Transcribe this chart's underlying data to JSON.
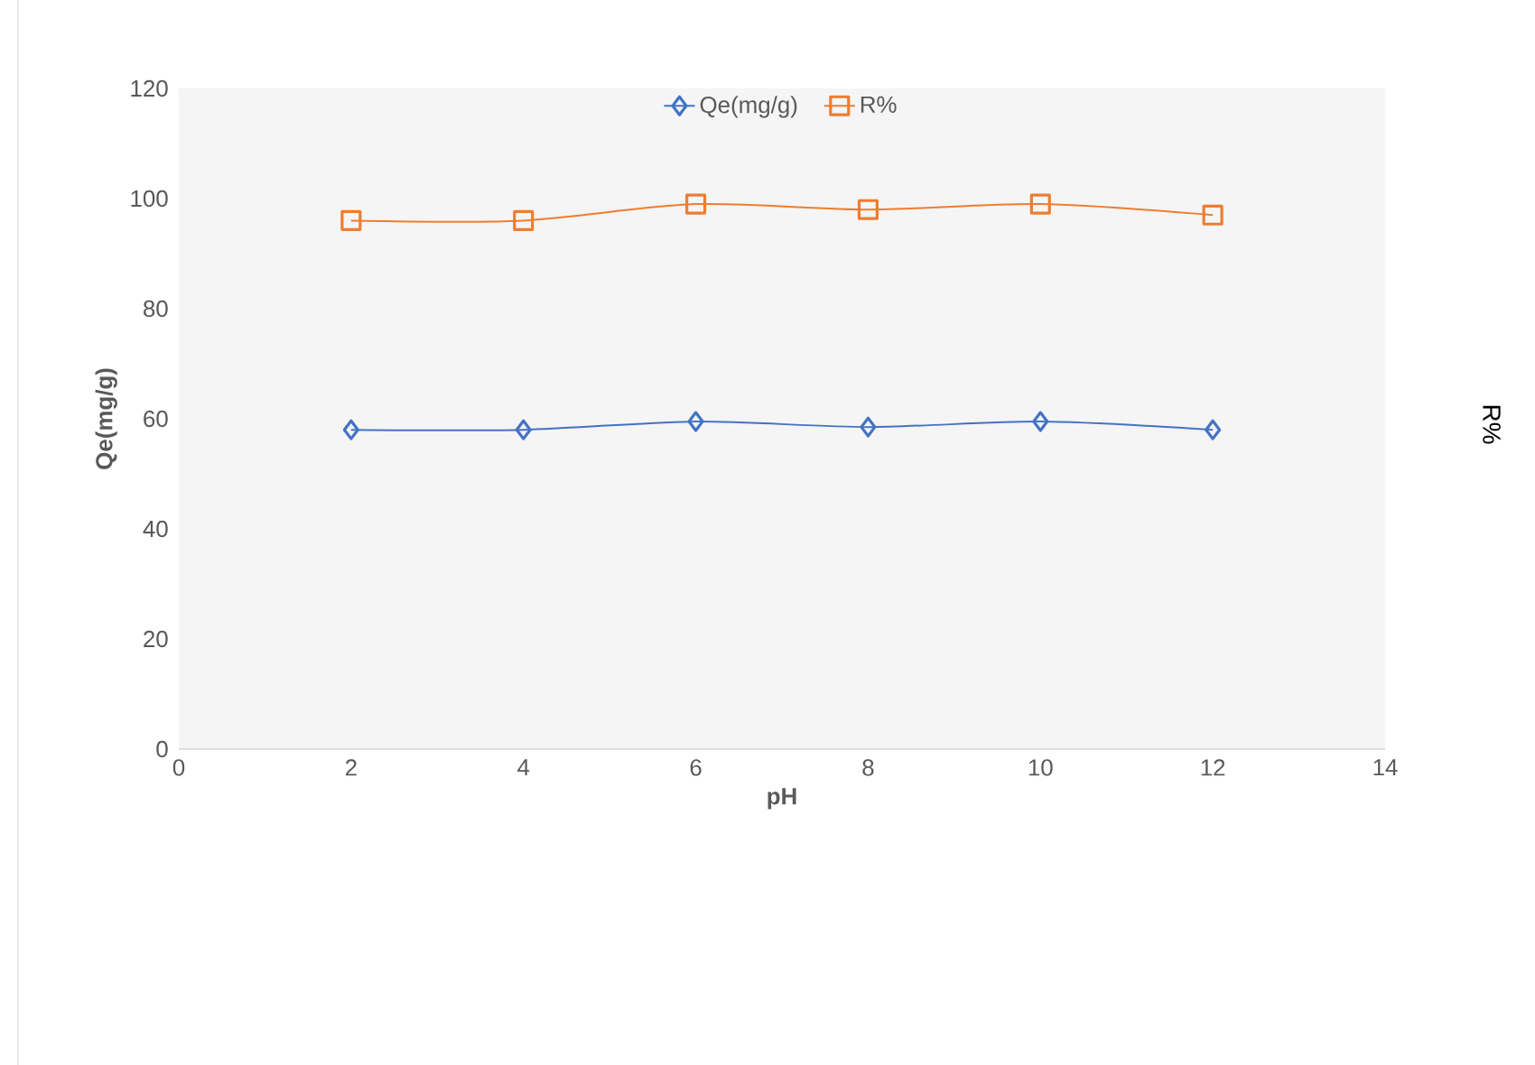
{
  "chart_data": {
    "type": "line",
    "xlabel": "pH",
    "ylabel": "Qe(mg/g)",
    "y2label": "R%",
    "x": [
      2,
      4,
      6,
      8,
      10,
      12
    ],
    "series": [
      {
        "name": "Qe(mg/g)",
        "color": "#4472c4",
        "marker": "diamond",
        "values": [
          58,
          58,
          59.5,
          58.5,
          59.5,
          58
        ]
      },
      {
        "name": "R%",
        "color": "#ed7d31",
        "marker": "square",
        "values": [
          96,
          96,
          99,
          98,
          99,
          97
        ]
      }
    ],
    "xlim": [
      0,
      14
    ],
    "xticks": [
      0,
      2,
      4,
      6,
      8,
      10,
      12,
      14
    ],
    "ylim": [
      0,
      120
    ],
    "yticks": [
      0,
      20,
      40,
      60,
      80,
      100,
      120
    ],
    "legend": "top",
    "grid": false
  }
}
